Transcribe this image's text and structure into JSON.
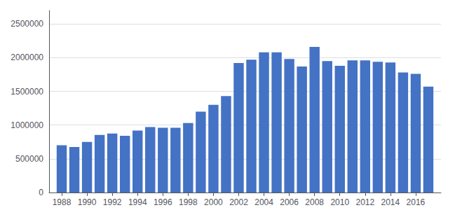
{
  "chart_data": {
    "type": "bar",
    "x": [
      1988,
      1989,
      1990,
      1991,
      1992,
      1993,
      1994,
      1995,
      1996,
      1997,
      1998,
      1999,
      2000,
      2001,
      2002,
      2003,
      2004,
      2005,
      2006,
      2007,
      2008,
      2009,
      2010,
      2011,
      2012,
      2013,
      2014,
      2015,
      2016,
      2017
    ],
    "values": [
      700000,
      675000,
      750000,
      855000,
      875000,
      840000,
      920000,
      970000,
      960000,
      960000,
      1030000,
      1200000,
      1300000,
      1430000,
      1920000,
      1970000,
      2080000,
      2080000,
      1980000,
      1870000,
      2160000,
      1950000,
      1880000,
      1960000,
      1960000,
      1940000,
      1930000,
      1780000,
      1760000,
      1570000
    ],
    "color": "#4472C4",
    "xlim": [
      1987,
      2018
    ],
    "xticks": [
      1988,
      1990,
      1992,
      1994,
      1996,
      1998,
      2000,
      2002,
      2004,
      2006,
      2008,
      2010,
      2012,
      2014,
      2016
    ],
    "ylim": [
      0,
      2700000
    ],
    "yticks": [
      0,
      500000,
      1000000,
      1500000,
      2000000,
      2500000
    ],
    "grid": true
  }
}
